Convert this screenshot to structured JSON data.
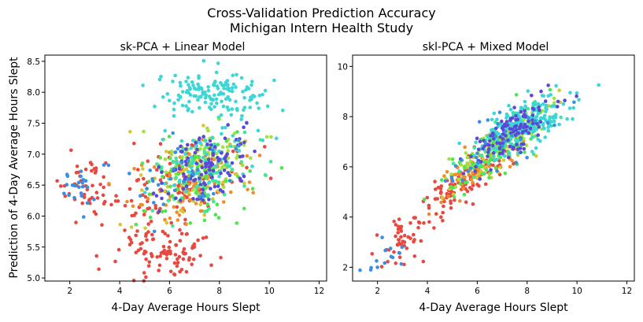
{
  "figure": {
    "title_line1": "Cross-Validation Prediction Accuracy",
    "title_line2": "Michigan Intern Health Study"
  },
  "chart_data": [
    {
      "type": "scatter",
      "title": "sk-PCA + Linear Model",
      "xlabel": "4-Day Average Hours Slept",
      "ylabel": "Prediction of 4-Day Average Hours Slept",
      "xlim": [
        1.0,
        12.3
      ],
      "ylim": [
        4.95,
        8.6
      ],
      "xticks": [
        2,
        4,
        6,
        8,
        10,
        12
      ],
      "yticks": [
        5.0,
        5.5,
        6.0,
        6.5,
        7.0,
        7.5,
        8.0,
        8.5
      ],
      "ytick_labels": [
        "5.0",
        "5.5",
        "6.0",
        "6.5",
        "7.0",
        "7.5",
        "8.0",
        "8.5"
      ],
      "colors": [
        "#e8483f",
        "#f08c2a",
        "#d6c82e",
        "#9fe33f",
        "#4de64f",
        "#3ee89a",
        "#3dd6d6",
        "#3a8fe0",
        "#5a48d8"
      ],
      "clusters": [
        {
          "color": 6,
          "n": 140,
          "cx": 7.6,
          "sx": 1.0,
          "cy": 7.95,
          "sy": 0.18,
          "cor": 0
        },
        {
          "color": 0,
          "n": 50,
          "cx": 2.8,
          "sx": 0.7,
          "cy": 6.5,
          "sy": 0.22,
          "cor": 0
        },
        {
          "color": 7,
          "n": 22,
          "cx": 2.4,
          "sx": 0.5,
          "cy": 6.45,
          "sy": 0.2,
          "cor": 0
        },
        {
          "color": 0,
          "n": 100,
          "cx": 5.8,
          "sx": 0.9,
          "cy": 5.45,
          "sy": 0.22,
          "cor": 0
        },
        {
          "color": 0,
          "n": 110,
          "cx": 6.5,
          "sx": 1.2,
          "cy": 6.45,
          "sy": 0.3,
          "cor": 0.35
        },
        {
          "color": 1,
          "n": 90,
          "cx": 6.9,
          "sx": 1.1,
          "cy": 6.5,
          "sy": 0.3,
          "cor": 0.35
        },
        {
          "color": 2,
          "n": 70,
          "cx": 7.0,
          "sx": 1.1,
          "cy": 6.6,
          "sy": 0.32,
          "cor": 0.3
        },
        {
          "color": 3,
          "n": 90,
          "cx": 7.6,
          "sx": 1.0,
          "cy": 7.0,
          "sy": 0.3,
          "cor": 0.3
        },
        {
          "color": 4,
          "n": 80,
          "cx": 7.2,
          "sx": 1.3,
          "cy": 6.6,
          "sy": 0.35,
          "cor": 0.3
        },
        {
          "color": 5,
          "n": 60,
          "cx": 7.5,
          "sx": 1.2,
          "cy": 6.7,
          "sy": 0.35,
          "cor": 0.3
        },
        {
          "color": 6,
          "n": 60,
          "cx": 7.3,
          "sx": 1.0,
          "cy": 6.9,
          "sy": 0.3,
          "cor": 0.3
        },
        {
          "color": 8,
          "n": 110,
          "cx": 7.4,
          "sx": 0.9,
          "cy": 6.8,
          "sy": 0.3,
          "cor": 0.3
        },
        {
          "color": 7,
          "n": 35,
          "cx": 6.6,
          "sx": 1.2,
          "cy": 6.6,
          "sy": 0.3,
          "cor": 0.2
        }
      ]
    },
    {
      "type": "scatter",
      "title": "skl-PCA + Mixed Model",
      "xlabel": "4-Day Average Hours Slept",
      "ylabel": "",
      "xlim": [
        1.0,
        12.3
      ],
      "ylim": [
        1.45,
        10.45
      ],
      "xticks": [
        2,
        4,
        6,
        8,
        10,
        12
      ],
      "yticks": [
        2,
        4,
        6,
        8,
        10
      ],
      "ytick_labels": [
        "2",
        "4",
        "6",
        "8",
        "10"
      ],
      "colors": [
        "#e8483f",
        "#f08c2a",
        "#d6c82e",
        "#9fe33f",
        "#4de64f",
        "#3ee89a",
        "#3dd6d6",
        "#3a8fe0",
        "#5a48d8"
      ],
      "clusters": [
        {
          "color": 0,
          "n": 45,
          "cx": 2.7,
          "sx": 0.6,
          "cy": 2.8,
          "sy": 0.5,
          "cor": 0.5
        },
        {
          "color": 7,
          "n": 14,
          "cx": 2.3,
          "sx": 0.5,
          "cy": 2.4,
          "sy": 0.4,
          "cor": 0.4
        },
        {
          "color": 0,
          "n": 120,
          "cx": 5.6,
          "sx": 1.0,
          "cy": 5.5,
          "sy": 0.8,
          "cor": 0.85
        },
        {
          "color": 1,
          "n": 80,
          "cx": 6.2,
          "sx": 0.9,
          "cy": 6.2,
          "sy": 0.8,
          "cor": 0.85
        },
        {
          "color": 2,
          "n": 60,
          "cx": 6.6,
          "sx": 0.9,
          "cy": 6.5,
          "sy": 0.8,
          "cor": 0.85
        },
        {
          "color": 3,
          "n": 80,
          "cx": 6.9,
          "sx": 1.0,
          "cy": 6.9,
          "sy": 0.8,
          "cor": 0.85
        },
        {
          "color": 4,
          "n": 80,
          "cx": 6.8,
          "sx": 1.1,
          "cy": 6.7,
          "sy": 0.9,
          "cor": 0.85
        },
        {
          "color": 5,
          "n": 60,
          "cx": 7.3,
          "sx": 1.0,
          "cy": 7.3,
          "sy": 0.8,
          "cor": 0.85
        },
        {
          "color": 6,
          "n": 200,
          "cx": 7.8,
          "sx": 0.9,
          "cy": 7.7,
          "sy": 0.6,
          "cor": 0.6
        },
        {
          "color": 8,
          "n": 120,
          "cx": 7.4,
          "sx": 0.9,
          "cy": 7.4,
          "sy": 0.7,
          "cor": 0.75
        },
        {
          "color": 7,
          "n": 30,
          "cx": 7.0,
          "sx": 1.1,
          "cy": 7.0,
          "sy": 0.8,
          "cor": 0.7
        }
      ]
    }
  ]
}
